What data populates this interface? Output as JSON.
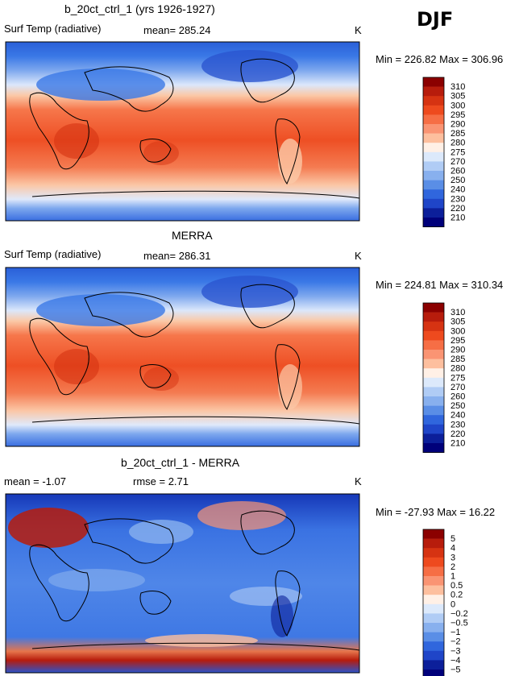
{
  "season": "DJF",
  "panels": [
    {
      "title": "b_20ct_ctrl_1 (yrs 1926-1927)",
      "left_label": "Surf Temp (radiative)",
      "mean_label": "mean= 285.24",
      "units": "K",
      "minmax": "Min = 226.82 Max = 306.96"
    },
    {
      "title": "MERRA",
      "left_label": "Surf Temp (radiative)",
      "mean_label": "mean= 286.31",
      "units": "K",
      "minmax": "Min = 224.81 Max = 310.34"
    },
    {
      "title": "b_20ct_ctrl_1 - MERRA",
      "left_label": "mean =   -1.07",
      "mean_label": "rmse =    2.71",
      "units": "K",
      "minmax": "Min = -27.93 Max =  16.22"
    }
  ],
  "chart_data": [
    {
      "type": "heatmap",
      "title": "b_20ct_ctrl_1 (yrs 1926-1927)",
      "variable": "Surf Temp (radiative)",
      "units": "K",
      "mean": 285.24,
      "min": 226.82,
      "max": 306.96,
      "colorbar_levels": [
        310,
        305,
        300,
        295,
        290,
        285,
        280,
        275,
        270,
        260,
        250,
        240,
        230,
        220,
        210
      ],
      "colorbar_colors": [
        "#8b0000",
        "#b71c0c",
        "#d63312",
        "#ee4a1e",
        "#f66e45",
        "#fa9473",
        "#fdbf9e",
        "#fff0e6",
        "#dce9fb",
        "#b0ccf5",
        "#88b0ee",
        "#5a8ee6",
        "#3066dd",
        "#1f45c8",
        "#0c1f9a",
        "#00007a"
      ]
    },
    {
      "type": "heatmap",
      "title": "MERRA",
      "variable": "Surf Temp (radiative)",
      "units": "K",
      "mean": 286.31,
      "min": 224.81,
      "max": 310.34,
      "colorbar_levels": [
        310,
        305,
        300,
        295,
        290,
        285,
        280,
        275,
        270,
        260,
        250,
        240,
        230,
        220,
        210
      ],
      "colorbar_colors": [
        "#8b0000",
        "#b71c0c",
        "#d63312",
        "#ee4a1e",
        "#f66e45",
        "#fa9473",
        "#fdbf9e",
        "#fff0e6",
        "#dce9fb",
        "#b0ccf5",
        "#88b0ee",
        "#5a8ee6",
        "#3066dd",
        "#1f45c8",
        "#0c1f9a",
        "#00007a"
      ]
    },
    {
      "type": "heatmap",
      "title": "b_20ct_ctrl_1 - MERRA",
      "units": "K",
      "mean": -1.07,
      "rmse": 2.71,
      "min": -27.93,
      "max": 16.22,
      "colorbar_levels": [
        "5",
        "4",
        "3",
        "2",
        "1",
        "0.5",
        "0.2",
        "0",
        "−0.2",
        "−0.5",
        "−1",
        "−2",
        "−3",
        "−4",
        "−5"
      ],
      "colorbar_colors": [
        "#8b0000",
        "#b71c0c",
        "#d63312",
        "#ee4a1e",
        "#f66e45",
        "#fa9473",
        "#fdbf9e",
        "#fff0e6",
        "#dce9fb",
        "#b0ccf5",
        "#88b0ee",
        "#5a8ee6",
        "#3066dd",
        "#1f45c8",
        "#0c1f9a",
        "#00007a"
      ]
    }
  ]
}
